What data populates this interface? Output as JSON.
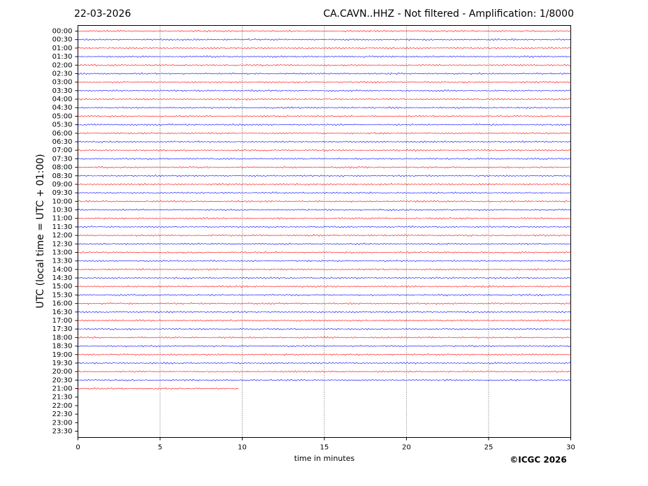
{
  "chart_data": {
    "type": "helicorder",
    "date": "22-03-2026",
    "title": "CA.CAVN..HHZ - Not filtered - Amplification: 1/8000",
    "ylabel": "UTC (local time = UTC + 01:00)",
    "xlabel": "time in minutes",
    "credit": "©ICGC 2026",
    "categories": [
      "00:00",
      "00:30",
      "01:00",
      "01:30",
      "02:00",
      "02:30",
      "03:00",
      "03:30",
      "04:00",
      "04:30",
      "05:00",
      "05:30",
      "06:00",
      "06:30",
      "07:00",
      "07:30",
      "08:00",
      "08:30",
      "09:00",
      "09:30",
      "10:00",
      "10:30",
      "11:00",
      "11:30",
      "12:00",
      "12:30",
      "13:00",
      "13:30",
      "14:00",
      "14:30",
      "15:00",
      "15:30",
      "16:00",
      "16:30",
      "17:00",
      "17:30",
      "18:00",
      "18:30",
      "19:00",
      "19:30",
      "20:00",
      "20:30",
      "21:00",
      "21:30",
      "22:00",
      "22:30",
      "23:00",
      "23:30"
    ],
    "values": [
      30,
      30,
      30,
      30,
      30,
      30,
      30,
      30,
      30,
      30,
      30,
      30,
      30,
      30,
      30,
      30,
      30,
      30,
      30,
      30,
      30,
      30,
      30,
      30,
      30,
      30,
      30,
      30,
      30,
      30,
      30,
      30,
      30,
      30,
      30,
      30,
      30,
      30,
      30,
      30,
      30,
      30,
      9.8,
      null,
      null,
      null,
      null,
      null
    ],
    "colors": [
      "#ff0000",
      "#0000ff"
    ],
    "xlim": [
      0,
      30
    ],
    "xticks": [
      0,
      5,
      10,
      15,
      20,
      25,
      30
    ],
    "grid": true
  }
}
